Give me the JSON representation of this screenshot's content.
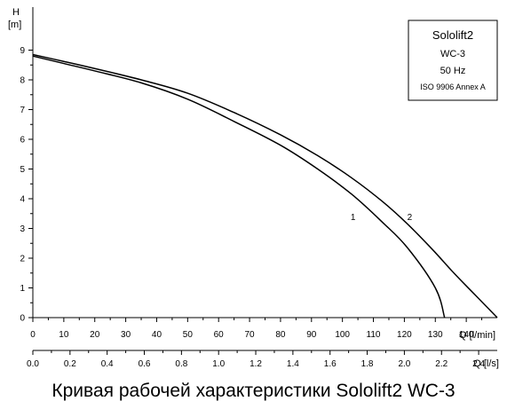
{
  "chart_data": {
    "type": "line",
    "title": "Кривая рабочей характеристики Sololift2 WC-3",
    "ylabel": "H",
    "yunit": "[m]",
    "ylim": [
      0,
      10
    ],
    "y_ticks": [
      "0",
      "1",
      "2",
      "3",
      "4",
      "5",
      "6",
      "7",
      "8",
      "9"
    ],
    "xlabel": "Q [l/min]",
    "xlim": [
      0,
      150
    ],
    "x_ticks": [
      "0",
      "10",
      "20",
      "30",
      "40",
      "50",
      "60",
      "70",
      "80",
      "90",
      "100",
      "110",
      "120",
      "130",
      "140"
    ],
    "x2label": "Q [l/s]",
    "x2lim": [
      0,
      2.5
    ],
    "x2_ticks": [
      "0.0",
      "0.2",
      "0.4",
      "0.6",
      "0.8",
      "1.0",
      "1.2",
      "1.4",
      "1.6",
      "1.8",
      "2.0",
      "2.2",
      "2.4"
    ],
    "grid": false,
    "series": [
      {
        "name": "1",
        "x": [
          0,
          10,
          20,
          35,
          50,
          65,
          80,
          92,
          103,
          113,
          121,
          130,
          133
        ],
        "y": [
          8.8,
          8.55,
          8.3,
          7.9,
          7.35,
          6.6,
          5.8,
          5.0,
          4.15,
          3.2,
          2.35,
          1.0,
          0.0
        ]
      },
      {
        "name": "2",
        "x": [
          0,
          10,
          20,
          35,
          50,
          65,
          80,
          92,
          103,
          113,
          121,
          129,
          136,
          143,
          150
        ],
        "y": [
          8.85,
          8.62,
          8.38,
          8.0,
          7.55,
          6.9,
          6.15,
          5.45,
          4.7,
          3.9,
          3.15,
          2.3,
          1.5,
          0.75,
          0.0
        ]
      }
    ]
  },
  "legend_box": {
    "product": "Sololift2",
    "model": "WC-3",
    "frequency": "50 Hz",
    "standard": "ISO 9906 Annex A"
  },
  "caption": "Кривая рабочей характеристики Sololift2 WC-3"
}
